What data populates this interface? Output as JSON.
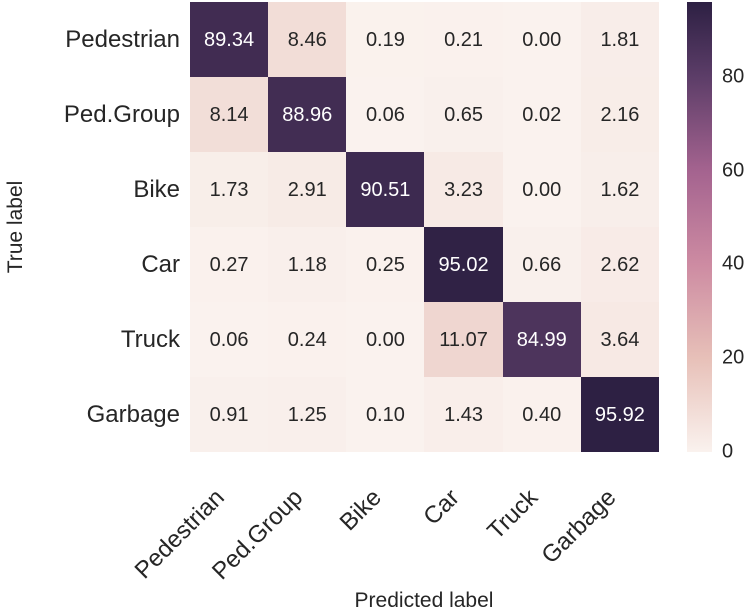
{
  "figure": {
    "background": "#ffffff",
    "text_color": "#262626"
  },
  "chart_data": {
    "type": "heatmap",
    "title": "",
    "xlabel": "Predicted label",
    "ylabel": "True label",
    "categories": [
      "Pedestrian",
      "Ped.Group",
      "Bike",
      "Car",
      "Truck",
      "Garbage"
    ],
    "matrix": [
      [
        89.34,
        8.46,
        0.19,
        0.21,
        0.0,
        1.81
      ],
      [
        8.14,
        88.96,
        0.06,
        0.65,
        0.02,
        2.16
      ],
      [
        1.73,
        2.91,
        90.51,
        3.23,
        0.0,
        1.62
      ],
      [
        0.27,
        1.18,
        0.25,
        95.02,
        0.66,
        2.62
      ],
      [
        0.06,
        0.24,
        0.0,
        11.07,
        84.99,
        3.64
      ],
      [
        0.91,
        1.25,
        0.1,
        1.43,
        0.4,
        95.92
      ]
    ],
    "annotation_decimals": 2,
    "vmin": 0,
    "vmax": 95.92,
    "colorbar_ticks": [
      80,
      60,
      40,
      20,
      0
    ],
    "colormap_stops": [
      {
        "v": 0,
        "c": "#faf2ee"
      },
      {
        "v": 20,
        "c": "#e7c0b8"
      },
      {
        "v": 40,
        "c": "#cd8ba2"
      },
      {
        "v": 60,
        "c": "#a4638f"
      },
      {
        "v": 80,
        "c": "#5c3d68"
      },
      {
        "v": 96,
        "c": "#2d2043"
      }
    ],
    "annotation_text_dark": "#262626",
    "annotation_text_light": "#ffffff",
    "light_text_threshold": 50,
    "legend_position": "right-colorbar",
    "grid": false
  }
}
